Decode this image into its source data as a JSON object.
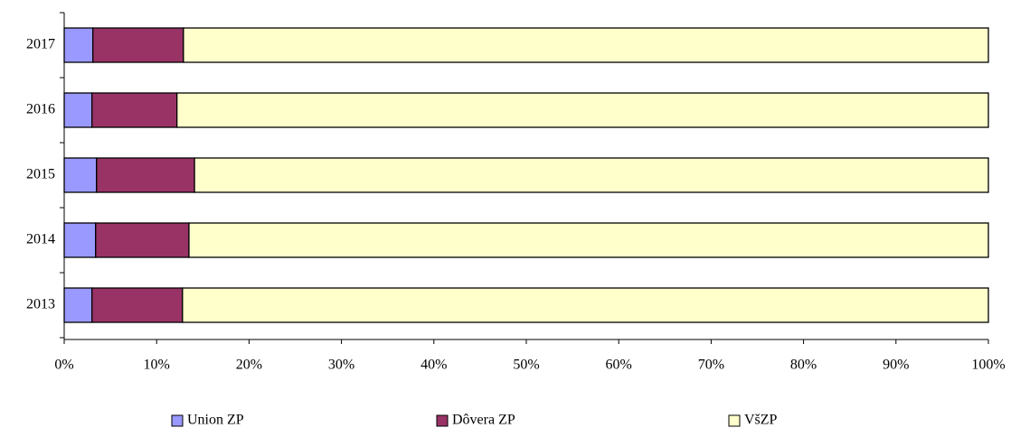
{
  "chart_data": {
    "type": "stacked-barh",
    "categories": [
      "2013",
      "2014",
      "2015",
      "2016",
      "2017"
    ],
    "series": [
      {
        "name": "Union ZP",
        "color": "#9999ff",
        "values": [
          3.0,
          3.4,
          3.5,
          3.0,
          3.1
        ]
      },
      {
        "name": "Dôvera ZP",
        "color": "#993366",
        "values": [
          9.8,
          10.1,
          10.6,
          9.2,
          9.8
        ]
      },
      {
        "name": "VšZP",
        "color": "#ffffcc",
        "values": [
          87.2,
          86.5,
          85.9,
          87.8,
          87.1
        ]
      }
    ],
    "xlim": [
      0,
      100
    ],
    "xticks": [
      {
        "value": 0,
        "label": "0%"
      },
      {
        "value": 10,
        "label": "10%"
      },
      {
        "value": 20,
        "label": "20%"
      },
      {
        "value": 30,
        "label": "30%"
      },
      {
        "value": 40,
        "label": "40%"
      },
      {
        "value": 50,
        "label": "50%"
      },
      {
        "value": 60,
        "label": "60%"
      },
      {
        "value": 70,
        "label": "70%"
      },
      {
        "value": 80,
        "label": "80%"
      },
      {
        "value": 90,
        "label": "90%"
      },
      {
        "value": 100,
        "label": "100%"
      }
    ],
    "legend": "bottom"
  }
}
